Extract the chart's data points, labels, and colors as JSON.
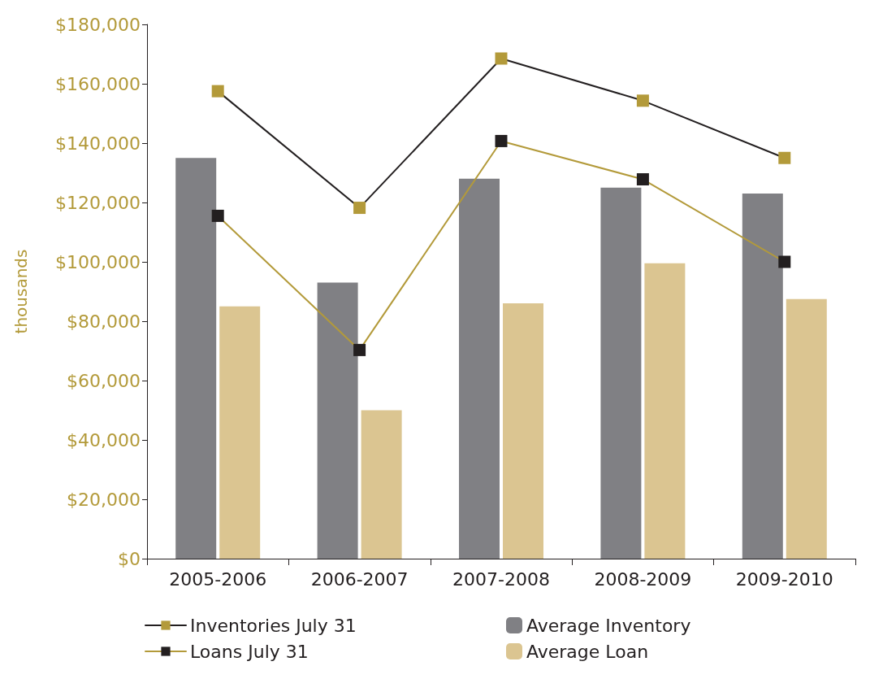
{
  "chart_data": {
    "type": "bar",
    "ylabel": "thousands",
    "categories": [
      "2005-2006",
      "2006-2007",
      "2007-2008",
      "2008-2009",
      "2009-2010"
    ],
    "series": [
      {
        "name": "Inventories July 31",
        "type": "line",
        "color": "#231f20",
        "values": [
          157500,
          118200,
          168500,
          154300,
          135000
        ]
      },
      {
        "name": "Loans July 31",
        "type": "line",
        "color": "#b39a3a",
        "values": [
          115500,
          70300,
          140700,
          127800,
          100000
        ]
      },
      {
        "name": "Average Inventory",
        "color": "#808084",
        "values": [
          135000,
          93000,
          128000,
          125000,
          123000
        ]
      },
      {
        "name": "Average Loan",
        "color": "#dbc591",
        "values": [
          85000,
          50000,
          86000,
          99500,
          87500
        ]
      }
    ],
    "ylim": [
      0,
      180000
    ],
    "yticks": [
      {
        "value": 0,
        "label": "$0"
      },
      {
        "value": 20000,
        "label": "$20,000"
      },
      {
        "value": 40000,
        "label": "$40,000"
      },
      {
        "value": 60000,
        "label": "$60,000"
      },
      {
        "value": 80000,
        "label": "$80,000"
      },
      {
        "value": 100000,
        "label": "$100,000"
      },
      {
        "value": 120000,
        "label": "$120,000"
      },
      {
        "value": 140000,
        "label": "$140,000"
      },
      {
        "value": 160000,
        "label": "$160,000"
      },
      {
        "value": 180000,
        "label": "$180,000"
      }
    ],
    "grid": false,
    "legend": "bottom",
    "marker": "square"
  }
}
